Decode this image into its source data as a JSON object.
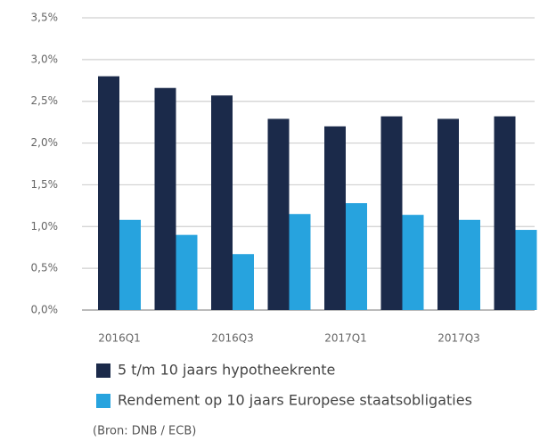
{
  "chart_data": {
    "type": "bar",
    "categories": [
      "2016Q1",
      null,
      "2016Q3",
      null,
      "2017Q1",
      null,
      "2017Q3",
      null
    ],
    "series": [
      {
        "name": "5 t/m 10 jaars hypotheekrente",
        "color": "#1b2a4a",
        "values": [
          2.8,
          2.66,
          2.57,
          2.29,
          2.2,
          2.32,
          2.29,
          2.32
        ]
      },
      {
        "name": "Rendement op 10 jaars Europese staatsobligaties",
        "color": "#27a3de",
        "values": [
          1.08,
          0.9,
          0.67,
          1.15,
          1.28,
          1.14,
          1.08,
          0.96
        ]
      }
    ],
    "ylim": [
      0,
      3.5
    ],
    "yticks": [
      {
        "value": 0,
        "label": "0,0%"
      },
      {
        "value": 0.5,
        "label": "0,5%"
      },
      {
        "value": 1,
        "label": "1,0%"
      },
      {
        "value": 1.5,
        "label": "1,5%"
      },
      {
        "value": 2,
        "label": "2,0%"
      },
      {
        "value": 2.5,
        "label": "2,5%"
      },
      {
        "value": 3,
        "label": "3,0%"
      },
      {
        "value": 3.5,
        "label": "3,5%"
      }
    ],
    "grid": true,
    "legend": "bottom",
    "source": "(Bron: DNB / ECB)"
  }
}
